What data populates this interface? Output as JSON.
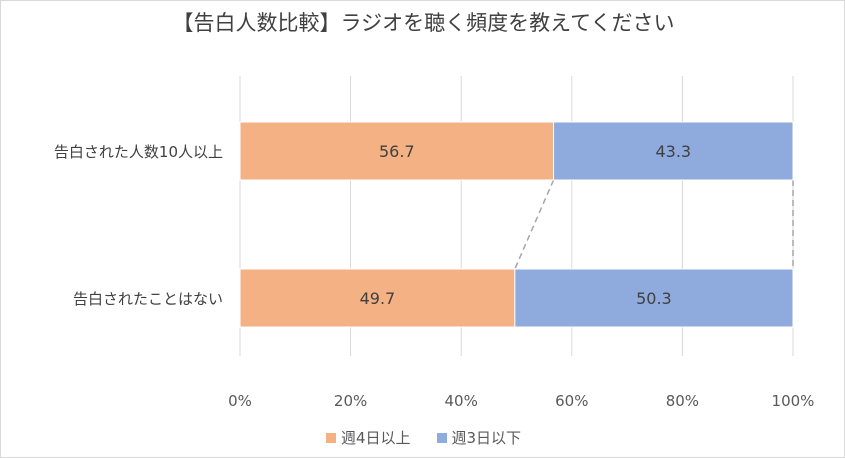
{
  "chart_data": {
    "type": "bar",
    "orientation": "horizontal",
    "stacked": "percent",
    "title": "【告白人数比較】ラジオを聴く頻度を教えてください",
    "categories": [
      "告白された人数10人以上",
      "告白されたことはない"
    ],
    "series": [
      {
        "name": "週4日以上",
        "values": [
          56.7,
          49.7
        ],
        "color": "#f4b183"
      },
      {
        "name": "週3日以下",
        "values": [
          43.3,
          50.3
        ],
        "color": "#8faadc"
      }
    ],
    "xlim": [
      0,
      100
    ],
    "xticks": [
      "0%",
      "20%",
      "40%",
      "60%",
      "80%",
      "100%"
    ],
    "grid": true,
    "series_lines": true,
    "legend": "bottom"
  }
}
